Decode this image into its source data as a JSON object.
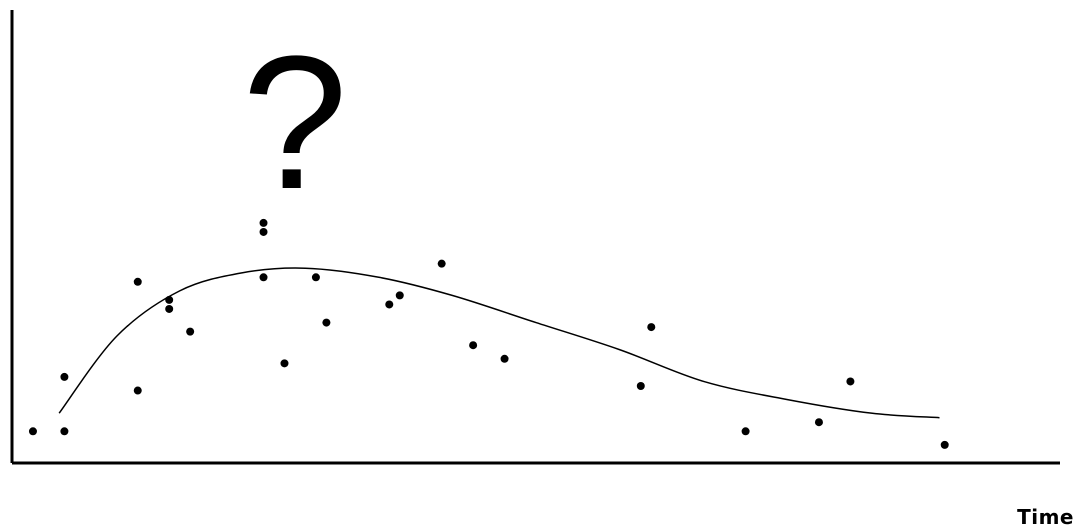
{
  "chart_data": {
    "type": "scatter",
    "title": "",
    "xlabel": "Time",
    "ylabel": "",
    "annotation": "?",
    "xlim": [
      0,
      100
    ],
    "ylim": [
      0,
      100
    ],
    "grid": false,
    "legend": "none",
    "colors": {
      "points": "#000000",
      "curve": "#000000",
      "axes": "#000000",
      "background": "#ffffff"
    },
    "series": [
      {
        "kind": "scatter",
        "points": [
          [
            2,
            7
          ],
          [
            5,
            7
          ],
          [
            5,
            19
          ],
          [
            12,
            16
          ],
          [
            12,
            40
          ],
          [
            15,
            36
          ],
          [
            15,
            34
          ],
          [
            17,
            29
          ],
          [
            24,
            51
          ],
          [
            24,
            53
          ],
          [
            24,
            41
          ],
          [
            26,
            22
          ],
          [
            29,
            41
          ],
          [
            30,
            31
          ],
          [
            36,
            35
          ],
          [
            37,
            37
          ],
          [
            41,
            44
          ],
          [
            44,
            26
          ],
          [
            47,
            23
          ],
          [
            60,
            17
          ],
          [
            61,
            30
          ],
          [
            70,
            7
          ],
          [
            77,
            9
          ],
          [
            80,
            18
          ],
          [
            89,
            4
          ]
        ]
      },
      {
        "kind": "curve",
        "points": [
          [
            4.5,
            11
          ],
          [
            10,
            28
          ],
          [
            16,
            38
          ],
          [
            22,
            42
          ],
          [
            28,
            43
          ],
          [
            35,
            41
          ],
          [
            42,
            37
          ],
          [
            50,
            31
          ],
          [
            58,
            25
          ],
          [
            66,
            18
          ],
          [
            74,
            14
          ],
          [
            82,
            11
          ],
          [
            88.5,
            10
          ]
        ]
      }
    ]
  }
}
